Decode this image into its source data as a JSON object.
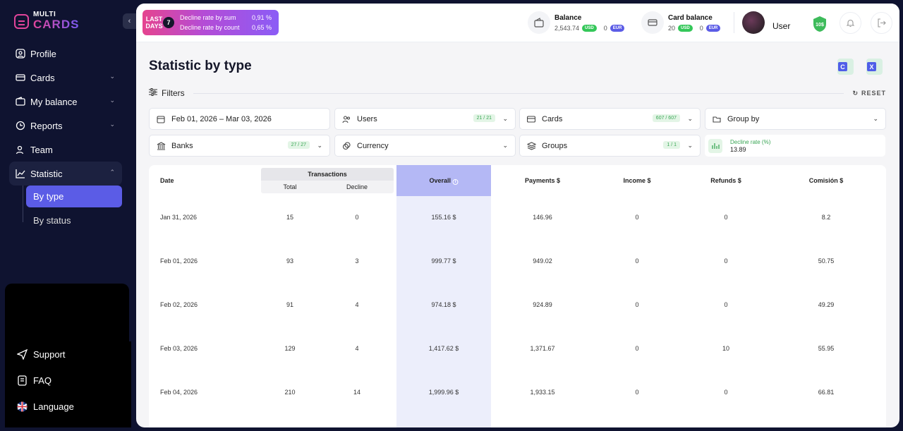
{
  "sidebar": {
    "logo_top": "MULTI",
    "logo_bottom": "CARDS",
    "collapse_icon": "chevron-left-icon",
    "nav": [
      {
        "label": "Profile",
        "icon": "user-icon",
        "chevron": false
      },
      {
        "label": "Cards",
        "icon": "card-icon",
        "chevron": true
      },
      {
        "label": "My balance",
        "icon": "wallet-icon",
        "chevron": true
      },
      {
        "label": "Reports",
        "icon": "report-icon",
        "chevron": true
      },
      {
        "label": "Team",
        "icon": "team-icon",
        "chevron": false
      },
      {
        "label": "Statistic",
        "icon": "chart-icon",
        "chevron": true
      }
    ],
    "sub": [
      {
        "label": "By type"
      },
      {
        "label": "By status"
      }
    ],
    "bottom": [
      {
        "label": "Support",
        "icon": "send-icon"
      },
      {
        "label": "FAQ",
        "icon": "faq-icon"
      },
      {
        "label": "Language",
        "icon": "uk-flag-icon"
      }
    ]
  },
  "topbar": {
    "last_days": {
      "label_1": "LAST",
      "label_2": "DAYS",
      "value": "7",
      "rate_sum_label": "Decline rate by sum",
      "rate_sum": "0,91 %",
      "rate_count_label": "Decline rate by count",
      "rate_count": "0,65 %"
    },
    "balance": {
      "title": "Balance",
      "usd": "2,543.74",
      "usd_label": "USD",
      "eur": "0",
      "eur_label": "EUR"
    },
    "card_balance": {
      "title": "Card balance",
      "usd": "20",
      "usd_label": "USD",
      "eur": "0",
      "eur_label": "EUR"
    },
    "user": "User",
    "shield_text": "10$"
  },
  "page": {
    "title": "Statistic by type",
    "filters_label": "Filters",
    "reset_label": "RESET"
  },
  "filters": {
    "date": "Feb 01, 2026 – Mar 03, 2026",
    "users": {
      "label": "Users",
      "badge": "21 / 21"
    },
    "cards": {
      "label": "Cards",
      "badge": "607 / 607"
    },
    "group_by": {
      "label": "Group by"
    },
    "banks": {
      "label": "Banks",
      "badge": "27 / 27"
    },
    "currency": {
      "label": "Currency"
    },
    "groups": {
      "label": "Groups",
      "badge": "1 / 1"
    },
    "decline": {
      "label": "Decline rate (%)",
      "value": "13.89"
    }
  },
  "table": {
    "headers": {
      "date": "Date",
      "transactions": "Transactions",
      "total": "Total",
      "decline": "Decline",
      "overall": "Overall",
      "payments": "Payments $",
      "income": "Income $",
      "refunds": "Refunds $",
      "commission": "Comisión $"
    },
    "rows": [
      {
        "date": "Jan 31, 2026",
        "total": "15",
        "decline": "0",
        "overall": "155.16 $",
        "payments": "146.96",
        "income": "0",
        "refunds": "0",
        "commission": "8.2"
      },
      {
        "date": "Feb 01, 2026",
        "total": "93",
        "decline": "3",
        "overall": "999.77 $",
        "payments": "949.02",
        "income": "0",
        "refunds": "0",
        "commission": "50.75"
      },
      {
        "date": "Feb 02, 2026",
        "total": "91",
        "decline": "4",
        "overall": "974.18 $",
        "payments": "924.89",
        "income": "0",
        "refunds": "0",
        "commission": "49.29"
      },
      {
        "date": "Feb 03, 2026",
        "total": "129",
        "decline": "4",
        "overall": "1,417.62 $",
        "payments": "1,371.67",
        "income": "0",
        "refunds": "10",
        "commission": "55.95"
      },
      {
        "date": "Feb 04, 2026",
        "total": "210",
        "decline": "14",
        "overall": "1,999.96 $",
        "payments": "1,933.15",
        "income": "0",
        "refunds": "0",
        "commission": "66.81"
      }
    ]
  },
  "colors": {
    "accent": "#5b5ce6",
    "brand_pink": "#e0449a",
    "success": "#34c759",
    "sidebar_bg": "#0f1330"
  }
}
